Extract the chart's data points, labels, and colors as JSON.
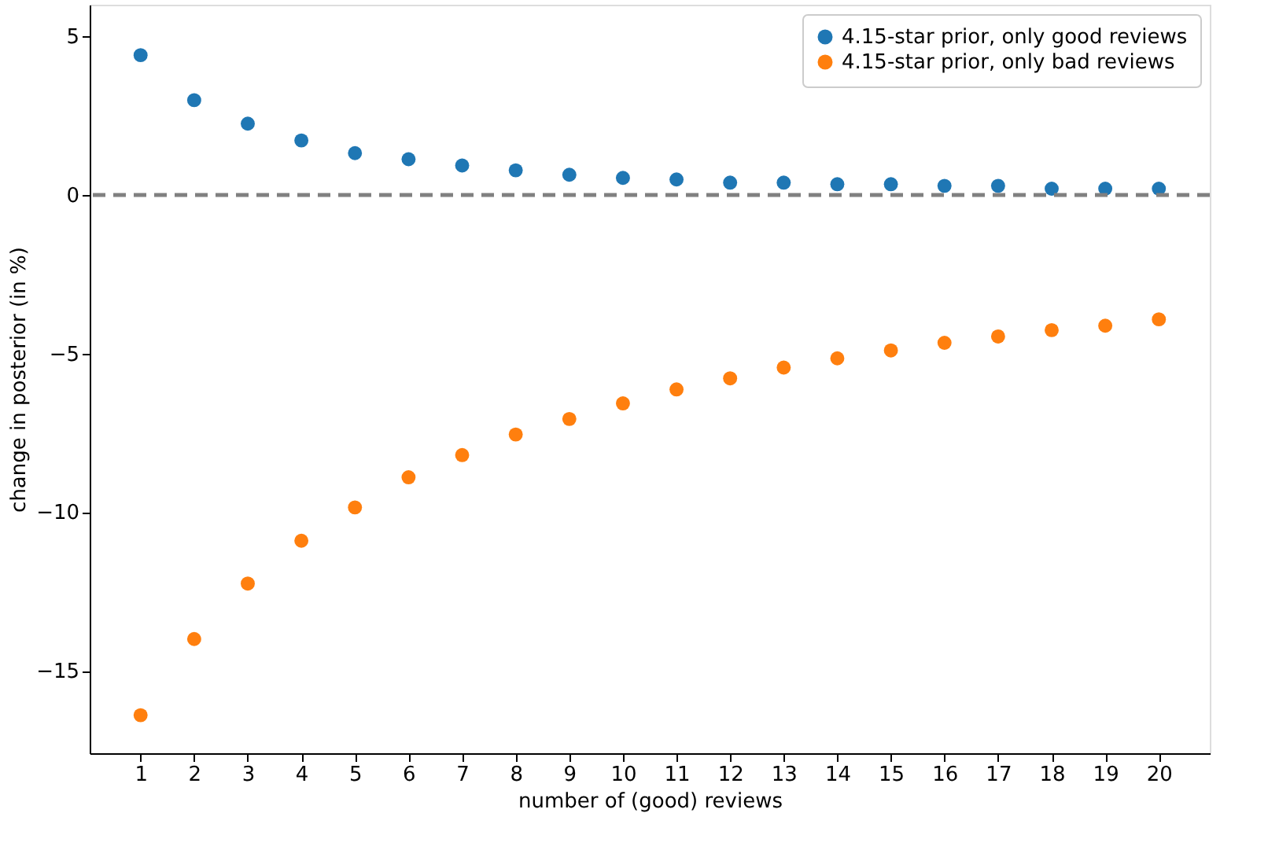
{
  "chart_data": {
    "type": "scatter",
    "xlabel": "number of (good) reviews",
    "ylabel": "change in posterior (in %)",
    "x": [
      1,
      2,
      3,
      4,
      5,
      6,
      7,
      8,
      9,
      10,
      11,
      12,
      13,
      14,
      15,
      16,
      17,
      18,
      19,
      20
    ],
    "series": [
      {
        "name": "4.15-star prior, only good reviews",
        "color": "#1f77b4",
        "values": [
          4.41,
          2.99,
          2.25,
          1.72,
          1.32,
          1.13,
          0.93,
          0.78,
          0.64,
          0.54,
          0.49,
          0.39,
          0.39,
          0.34,
          0.34,
          0.29,
          0.29,
          0.2,
          0.2,
          0.2
        ]
      },
      {
        "name": "4.15-star prior, only bad reviews",
        "color": "#ff7f0e",
        "values": [
          -16.4,
          -14.0,
          -12.25,
          -10.9,
          -9.85,
          -8.9,
          -8.2,
          -7.55,
          -7.06,
          -6.57,
          -6.13,
          -5.78,
          -5.44,
          -5.15,
          -4.9,
          -4.66,
          -4.46,
          -4.26,
          -4.12,
          -3.92
        ]
      }
    ],
    "xlim": [
      0.05,
      20.95
    ],
    "ylim": [
      -17.6,
      6.0
    ],
    "xticks": [
      1,
      2,
      3,
      4,
      5,
      6,
      7,
      8,
      9,
      10,
      11,
      12,
      13,
      14,
      15,
      16,
      17,
      18,
      19,
      20
    ],
    "yticks": [
      -15,
      -10,
      -5,
      0,
      5
    ],
    "ref_lines": [
      {
        "axis": "y",
        "value": 0,
        "color": "#808080",
        "line_style": "dashed"
      }
    ],
    "legend": "top right",
    "marker": "circle",
    "grid": false
  }
}
